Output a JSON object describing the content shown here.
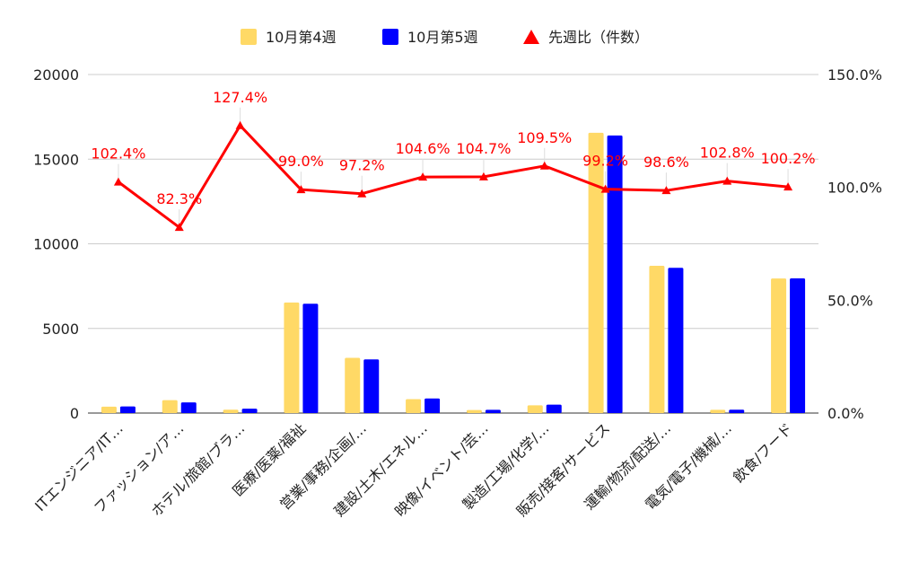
{
  "chart_data": {
    "type": "bar",
    "title": "",
    "categories": [
      "ITエンジニア/IT…",
      "ファッション/ア…",
      "ホテル/旅館/ブラ…",
      "医療/医薬/福祉",
      "営業/事務/企画/…",
      "建設/土木/エネル…",
      "映像/イベント/芸…",
      "製造/工場/化学/…",
      "販売/接客/サービス",
      "運輸/物流/配送/…",
      "電気/電子/機械/…",
      "飲食/フード"
    ],
    "series": [
      {
        "name": "10月第4週",
        "type": "bar",
        "axis": "left",
        "color": "#FFD966",
        "values": [
          380,
          760,
          200,
          6530,
          3260,
          820,
          180,
          460,
          16560,
          8700,
          190,
          7950
        ]
      },
      {
        "name": "10月第5週",
        "type": "bar",
        "axis": "left",
        "color": "#0000FF",
        "values": [
          390,
          630,
          260,
          6460,
          3170,
          860,
          190,
          500,
          16400,
          8580,
          200,
          7960
        ]
      },
      {
        "name": "先週比（件数）",
        "type": "line",
        "axis": "right",
        "color": "#FF0000",
        "values": [
          102.4,
          82.3,
          127.4,
          99.0,
          97.2,
          104.6,
          104.7,
          109.5,
          99.2,
          98.6,
          102.8,
          100.2
        ],
        "labels": [
          "102.4%",
          "82.3%",
          "127.4%",
          "99.0%",
          "97.2%",
          "104.6%",
          "104.7%",
          "109.5%",
          "99.2%",
          "98.6%",
          "102.8%",
          "100.2%"
        ]
      }
    ],
    "y_left": {
      "min": 0,
      "max": 20000,
      "ticks": [
        "0",
        "5000",
        "10000",
        "15000",
        "20000"
      ],
      "tick_values": [
        0,
        5000,
        10000,
        15000,
        20000
      ]
    },
    "y_right": {
      "min": 0,
      "max": 150,
      "ticks": [
        "0.0%",
        "50.0%",
        "100.0%",
        "150.0%"
      ],
      "tick_values": [
        0,
        50,
        100,
        150
      ]
    },
    "grid": true,
    "legend_position": "top-center",
    "xlabel": "",
    "ylabel": ""
  }
}
